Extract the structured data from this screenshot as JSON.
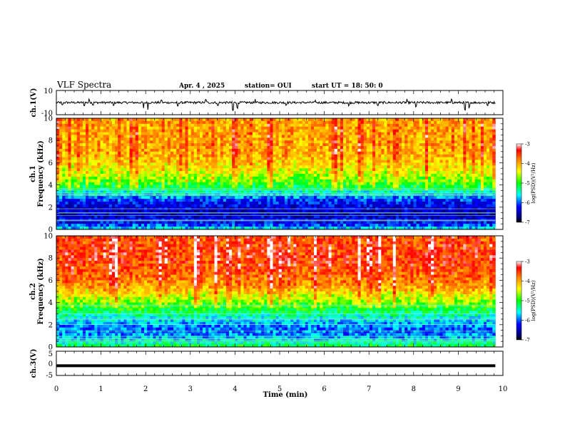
{
  "header": {
    "title": "VLF Spectra",
    "date": "Apr. 4  , 2025",
    "station": "station= OUI",
    "start": "start  UT  =  18: 50: 0"
  },
  "chart_data": [
    {
      "type": "line",
      "name": "ch1-waveform",
      "ylabel": "ch.1(V)",
      "ylim": [
        -10,
        10
      ],
      "yticks": [
        "10",
        "-10"
      ],
      "baseline": 0,
      "spikes": [
        {
          "t": 0.13,
          "v": -2
        },
        {
          "t": 0.62,
          "v": -4
        },
        {
          "t": 0.74,
          "v": 3
        },
        {
          "t": 0.82,
          "v": -3
        },
        {
          "t": 1.28,
          "v": -3
        },
        {
          "t": 1.95,
          "v": -5
        },
        {
          "t": 2.05,
          "v": -7
        },
        {
          "t": 2.35,
          "v": 3
        },
        {
          "t": 2.72,
          "v": -3
        },
        {
          "t": 3.35,
          "v": 3
        },
        {
          "t": 3.62,
          "v": -3
        },
        {
          "t": 3.95,
          "v": -8
        },
        {
          "t": 4.05,
          "v": -6
        },
        {
          "t": 4.45,
          "v": 3
        },
        {
          "t": 5.15,
          "v": -3
        },
        {
          "t": 5.8,
          "v": 3
        },
        {
          "t": 6.55,
          "v": -3
        },
        {
          "t": 7.2,
          "v": -3
        },
        {
          "t": 7.85,
          "v": 3
        },
        {
          "t": 8.05,
          "v": -4
        },
        {
          "t": 8.85,
          "v": 3
        },
        {
          "t": 9.15,
          "v": -7
        },
        {
          "t": 9.25,
          "v": -5
        },
        {
          "t": 9.65,
          "v": -3
        }
      ]
    },
    {
      "type": "heatmap",
      "name": "ch1-spectrogram",
      "ylabel": "ch.1",
      "ylabel2": "Frequency (kHz)",
      "ylim": [
        0,
        10
      ],
      "yticks": [
        "0",
        "2",
        "4",
        "6",
        "8",
        "10"
      ],
      "colorbar": {
        "label": "log(PSD)(V²/Hz)",
        "range": [
          -7,
          -3
        ],
        "ticks": [
          "-3",
          "-4",
          "-5",
          "-6",
          "-7"
        ]
      },
      "profile": [
        {
          "f": 0,
          "v": -5.5
        },
        {
          "f": 0.5,
          "v": -6.2
        },
        {
          "f": 1.5,
          "v": -6.5
        },
        {
          "f": 2.5,
          "v": -6.2
        },
        {
          "f": 3.2,
          "v": -5.6
        },
        {
          "f": 4,
          "v": -5.0
        },
        {
          "f": 5,
          "v": -4.5
        },
        {
          "f": 6,
          "v": -4.2
        },
        {
          "f": 7,
          "v": -4.0
        },
        {
          "f": 8,
          "v": -4.0
        },
        {
          "f": 10,
          "v": -4.0
        }
      ]
    },
    {
      "type": "heatmap",
      "name": "ch2-spectrogram",
      "ylabel": "ch.2",
      "ylabel2": "Frequency (kHz)",
      "ylim": [
        0,
        10
      ],
      "yticks": [
        "0",
        "2",
        "4",
        "6",
        "8",
        "10"
      ],
      "colorbar": {
        "label": "log(PSD)(V²/Hz)",
        "range": [
          -7,
          -3
        ],
        "ticks": [
          "-3",
          "-4",
          "-5",
          "-6",
          "-7"
        ]
      },
      "profile": [
        {
          "f": 0,
          "v": -5.0
        },
        {
          "f": 0.5,
          "v": -5.6
        },
        {
          "f": 1.5,
          "v": -6.0
        },
        {
          "f": 2.5,
          "v": -5.6
        },
        {
          "f": 3.5,
          "v": -5.0
        },
        {
          "f": 4.5,
          "v": -4.5
        },
        {
          "f": 5.5,
          "v": -3.9
        },
        {
          "f": 7,
          "v": -3.6
        },
        {
          "f": 8,
          "v": -3.5
        },
        {
          "f": 10,
          "v": -3.6
        }
      ]
    },
    {
      "type": "line",
      "name": "ch3-waveform",
      "ylabel": "ch.3(V)",
      "ylim": [
        -5,
        5
      ],
      "yticks": [
        "5",
        "0",
        "-5"
      ],
      "baseline": 0
    }
  ],
  "xaxis": {
    "label": "Time (min)",
    "range": [
      0,
      10
    ],
    "data_end": 9.83,
    "ticks": [
      "0",
      "1",
      "2",
      "3",
      "4",
      "5",
      "6",
      "7",
      "8",
      "9",
      "10"
    ]
  }
}
